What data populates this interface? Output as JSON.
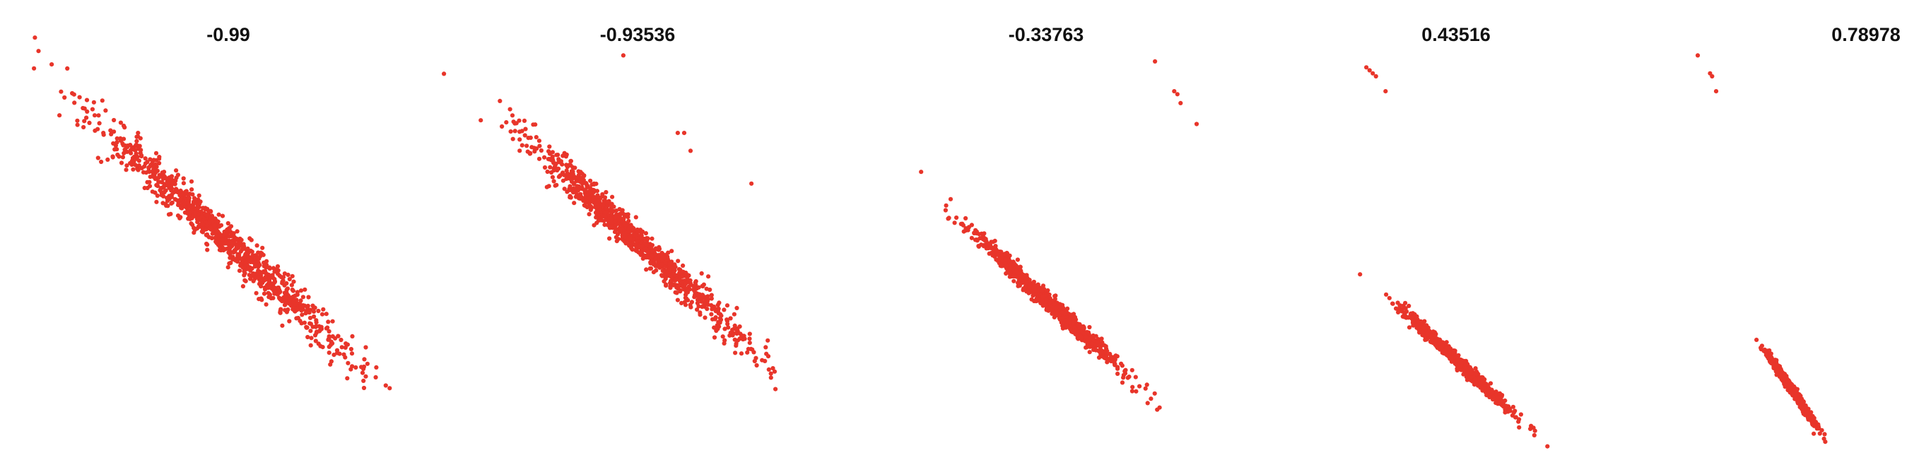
{
  "chart_data": [
    {
      "type": "scatter",
      "title": "-0.99",
      "grid": false,
      "axes_visible": false,
      "marker_color": "#e8352a",
      "point_count": 1000,
      "correlation": -0.99,
      "trend": {
        "slope": -1,
        "intercept": 0
      },
      "x_spread": 1.0,
      "residual_sd": 0.14,
      "outliers": [],
      "xlim": [
        -3.2,
        3.2
      ],
      "ylim": [
        -3.2,
        3.2
      ]
    },
    {
      "type": "scatter",
      "title": "-0.93536",
      "grid": false,
      "axes_visible": false,
      "marker_color": "#e8352a",
      "point_count": 1000,
      "correlation": -0.93536,
      "trend": {
        "slope": -1,
        "intercept": 0
      },
      "x_spread": 0.85,
      "residual_sd": 0.12,
      "outliers": [
        {
          "x": -0.2,
          "y": 3.1
        },
        {
          "x": 0.65,
          "y": 1.8
        },
        {
          "x": 0.75,
          "y": 1.8
        },
        {
          "x": 0.85,
          "y": 1.5
        },
        {
          "x": 1.8,
          "y": 0.95
        }
      ],
      "xlim": [
        -3.2,
        3.2
      ],
      "ylim": [
        -3.2,
        3.2
      ]
    },
    {
      "type": "scatter",
      "title": "-0.33763",
      "grid": false,
      "axes_visible": false,
      "marker_color": "#e8352a",
      "point_count": 1000,
      "correlation": -0.33763,
      "trend": {
        "slope": -1,
        "intercept": -1
      },
      "x_spread": 0.6,
      "residual_sd": 0.07,
      "outliers": [
        {
          "x": 1.7,
          "y": 3.0
        },
        {
          "x": 2.0,
          "y": 2.5
        },
        {
          "x": 2.05,
          "y": 2.45
        },
        {
          "x": 2.1,
          "y": 2.3
        },
        {
          "x": 2.35,
          "y": 1.95
        }
      ],
      "xlim": [
        -3.2,
        3.2
      ],
      "ylim": [
        -3.2,
        3.2
      ]
    },
    {
      "type": "scatter",
      "title": "0.43516",
      "grid": false,
      "axes_visible": false,
      "marker_color": "#e8352a",
      "point_count": 1000,
      "correlation": 0.43516,
      "trend": {
        "slope": -1,
        "intercept": -2
      },
      "x_spread": 0.4,
      "residual_sd": 0.05,
      "outliers": [
        {
          "x": -1.4,
          "y": 2.9
        },
        {
          "x": -1.35,
          "y": 2.85
        },
        {
          "x": -1.3,
          "y": 2.8
        },
        {
          "x": -1.25,
          "y": 2.75
        },
        {
          "x": -1.1,
          "y": 2.5
        }
      ],
      "xlim": [
        -3.2,
        3.2
      ],
      "ylim": [
        -3.2,
        3.2
      ]
    },
    {
      "type": "scatter",
      "title": "0.78978",
      "grid": false,
      "axes_visible": false,
      "marker_color": "#e8352a",
      "point_count": 1000,
      "correlation": 0.78978,
      "trend": {
        "slope": -1,
        "intercept": -2.5
      },
      "x_spread": 0.28,
      "residual_sd": 0.04,
      "outliers": [
        {
          "x": -2.3,
          "y": 3.1
        },
        {
          "x": -2.0,
          "y": 2.8
        },
        {
          "x": -1.95,
          "y": 2.75
        },
        {
          "x": -1.85,
          "y": 2.5
        }
      ],
      "xlim": [
        -3.2,
        3.2
      ],
      "ylim": [
        -3.2,
        3.2
      ]
    }
  ]
}
